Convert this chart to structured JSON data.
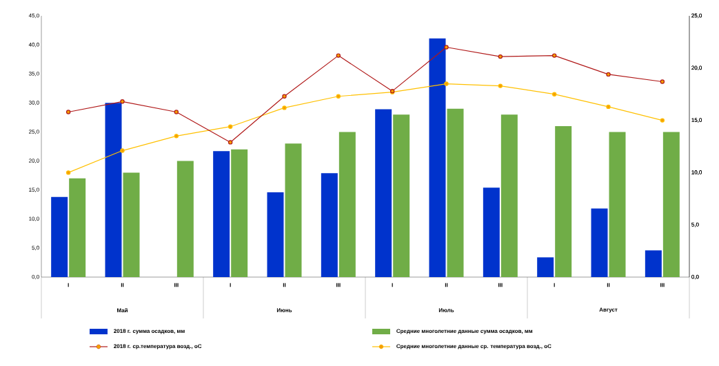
{
  "chart_data": {
    "type": "bar",
    "categories": [
      "I",
      "II",
      "III",
      "I",
      "II",
      "III",
      "I",
      "II",
      "III",
      "I",
      "II",
      "III"
    ],
    "annotations": [
      "Май",
      "Июнь",
      "Июль",
      "Август"
    ],
    "series": [
      {
        "name": "2018 г. сумма осадков, мм",
        "color": "#0033cc",
        "values": [
          13.8,
          30.0,
          0,
          21.7,
          14.6,
          17.9,
          28.9,
          41.1,
          15.4,
          3.4,
          11.8,
          4.6
        ]
      },
      {
        "name": "Средние многолетние данные сумма осадков, мм",
        "color": "#70ad47",
        "values": [
          17,
          18,
          20,
          22,
          23,
          25,
          28,
          29,
          28,
          26,
          25,
          25
        ]
      },
      {
        "name": "2018 г. ср.температура возд., оС",
        "type": "line",
        "axis": "y2",
        "color": "#b01818",
        "values": [
          15.8,
          16.8,
          15.8,
          12.9,
          17.3,
          21.2,
          17.8,
          22.0,
          21.1,
          21.2,
          19.4,
          18.7
        ]
      },
      {
        "name": "Средние многолетние данные ср. температура возд., оС",
        "type": "line",
        "axis": "y2",
        "color": "#ffc000",
        "values": [
          10.0,
          12.1,
          13.5,
          14.4,
          16.2,
          17.3,
          17.7,
          18.5,
          18.3,
          17.5,
          16.3,
          15.0
        ]
      }
    ],
    "ylim": [
      0,
      45
    ],
    "yticks": [
      {
        "value": 0,
        "label": "0,0"
      },
      {
        "value": 5,
        "label": "5,0"
      },
      {
        "value": 10,
        "label": "10,0"
      },
      {
        "value": 15,
        "label": "15,0"
      },
      {
        "value": 20,
        "label": "20,0"
      },
      {
        "value": 25,
        "label": "25,0"
      },
      {
        "value": 30,
        "label": "30,0"
      },
      {
        "value": 35,
        "label": "35,0"
      },
      {
        "value": 40,
        "label": "40,0"
      },
      {
        "value": 45,
        "label": "45,0"
      }
    ],
    "y2lim": [
      0,
      25
    ],
    "y2ticks": [
      {
        "value": 0,
        "label": "0,0"
      },
      {
        "value": 5,
        "label": "5,0"
      },
      {
        "value": 10,
        "label": "10,0"
      },
      {
        "value": 15,
        "label": "15,0"
      },
      {
        "value": 20,
        "label": "20,0"
      },
      {
        "value": 25,
        "label": "25,0"
      }
    ],
    "legend": "bottom",
    "marker": "circle",
    "line_style": "solid"
  }
}
